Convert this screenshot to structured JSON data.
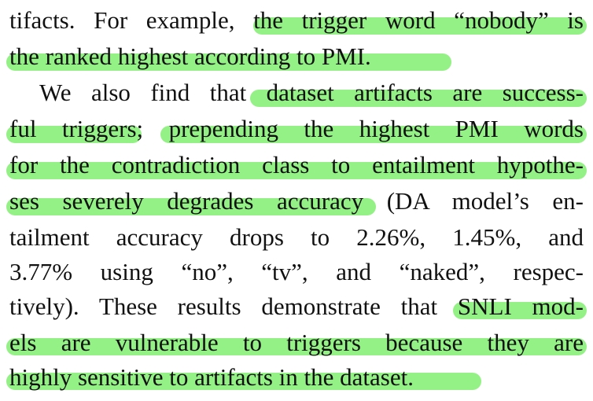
{
  "paragraph": {
    "lines": [
      "tifacts. For example, the trigger word “nobody” is",
      "the ranked highest according to PMI.",
      "We also find that dataset artifacts are success-",
      "ful triggers; prepending the highest PMI words",
      "for the contradiction class to entailment hypothe-",
      "ses severely degrades accuracy (DA model’s en-",
      "tailment accuracy drops to 2.26%, 1.45%, and",
      "3.77% using “no”, “tv”, and “naked”, respec-",
      "tively). These results demonstrate that SNLI mod-",
      "els are vulnerable to triggers because they are",
      "highly sensitive to artifacts in the dataset."
    ]
  },
  "highlight_color": "#8ef07f"
}
